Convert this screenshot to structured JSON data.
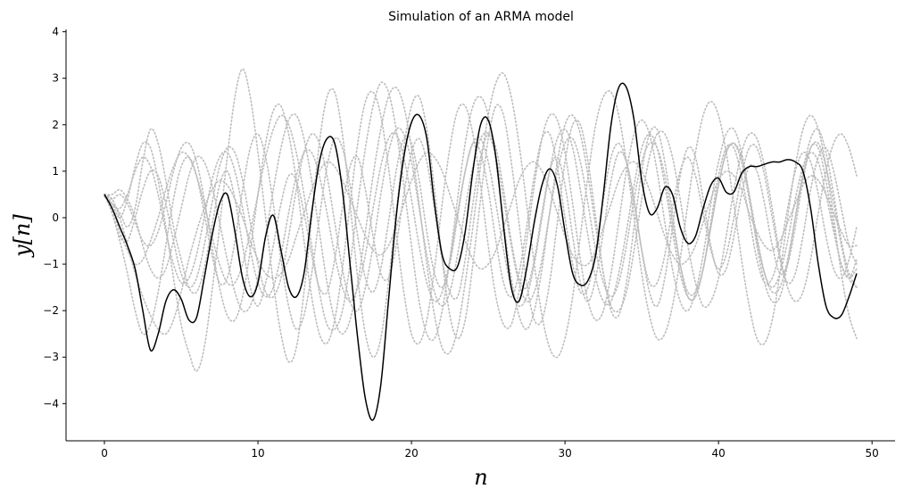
{
  "chart_data": {
    "type": "line",
    "title": "Simulation of an ARMA model",
    "xlabel": "n",
    "ylabel": "y[n]",
    "xlim": [
      -2.5,
      51.5
    ],
    "ylim": [
      -4.8,
      4.05
    ],
    "xticks": [
      0,
      10,
      20,
      30,
      40,
      50
    ],
    "yticks": [
      -4,
      -3,
      -2,
      -1,
      0,
      1,
      2,
      3,
      4
    ],
    "ytick_labels": [
      "−4",
      "−3",
      "−2",
      "−1",
      "0",
      "1",
      "2",
      "3",
      "4"
    ],
    "colors": {
      "main": "#000000",
      "background_series": "#bdbdbd"
    },
    "main_series": {
      "x": [
        0,
        0.5,
        1,
        1.5,
        2,
        2.5,
        3,
        3.5,
        4,
        4.5,
        5,
        5.5,
        6,
        6.5,
        7,
        7.5,
        8,
        8.5,
        9,
        9.5,
        10,
        10.5,
        11,
        11.5,
        12,
        12.5,
        13,
        13.5,
        14,
        14.5,
        15,
        15.5,
        16,
        16.5,
        17,
        17.5,
        18,
        18.5,
        19,
        19.5,
        20,
        20.5,
        21,
        21.5,
        22,
        22.5,
        23,
        23.5,
        24,
        24.5,
        25,
        25.5,
        26,
        26.5,
        27,
        27.5,
        28,
        28.5,
        29,
        29.5,
        30,
        30.5,
        31,
        31.5,
        32,
        32.5,
        33,
        33.5,
        34,
        34.5,
        35,
        35.5,
        36,
        36.5,
        37,
        37.5,
        38,
        38.5,
        39,
        39.5,
        40,
        40.5,
        41,
        41.5,
        42,
        42.5,
        43,
        43.5,
        44,
        44.5,
        45,
        45.5,
        46,
        46.5,
        47,
        47.5,
        48,
        48.5,
        49
      ],
      "y": [
        0.5,
        0.2,
        -0.2,
        -0.6,
        -1.1,
        -2.0,
        -2.85,
        -2.5,
        -1.8,
        -1.55,
        -1.75,
        -2.2,
        -2.15,
        -1.3,
        -0.4,
        0.3,
        0.5,
        -0.3,
        -1.3,
        -1.7,
        -1.4,
        -0.4,
        0.05,
        -0.7,
        -1.5,
        -1.7,
        -1.2,
        0.1,
        1.2,
        1.7,
        1.6,
        0.6,
        -1.0,
        -2.6,
        -3.9,
        -4.35,
        -3.6,
        -1.8,
        0.0,
        1.3,
        2.05,
        2.2,
        1.7,
        0.3,
        -0.8,
        -1.1,
        -1.05,
        -0.3,
        1.0,
        2.0,
        2.1,
        1.3,
        -0.2,
        -1.5,
        -1.8,
        -1.1,
        -0.1,
        0.7,
        1.05,
        0.7,
        -0.3,
        -1.2,
        -1.45,
        -1.35,
        -0.8,
        0.5,
        2.0,
        2.8,
        2.8,
        2.1,
        0.8,
        0.1,
        0.2,
        0.65,
        0.5,
        -0.2,
        -0.55,
        -0.4,
        0.2,
        0.7,
        0.85,
        0.55,
        0.55,
        0.95,
        1.1,
        1.1,
        1.15,
        1.2,
        1.2,
        1.25,
        1.2,
        1.0,
        0.2,
        -1.0,
        -1.9,
        -2.15,
        -2.1,
        -1.7,
        -1.2
      ]
    },
    "background_series": [
      {
        "values": [
          0.45,
          0.3,
          0.1,
          -0.2,
          0.2,
          1.2,
          1.9,
          1.6,
          0.8,
          -0.2,
          -0.9,
          -1.5,
          -1.6,
          -1.1,
          -0.2,
          0.7,
          1.0,
          0.4,
          -0.6,
          -1.5,
          -1.9,
          -1.4,
          -0.6,
          0.3,
          0.9,
          0.8,
          0.1,
          -0.8,
          -1.5,
          -1.6,
          -0.9,
          0.2,
          1.1,
          1.3,
          0.6,
          -0.4,
          -1.2,
          -1.3,
          -0.6,
          0.5,
          1.4,
          1.7,
          1.2,
          0.2,
          -0.9,
          -1.6,
          -1.7,
          -0.9,
          0.3,
          1.3,
          1.8,
          1.5,
          0.6,
          -0.5,
          -1.3,
          -1.5,
          -0.9,
          0.1,
          1.0,
          1.3,
          0.7,
          -0.4,
          -1.4,
          -1.8,
          -1.3,
          -0.3,
          0.8,
          1.4,
          1.2,
          0.4,
          -0.7,
          -1.6,
          -1.9,
          -1.3,
          -0.2,
          0.9,
          1.5,
          1.3,
          0.4,
          -0.6,
          -1.2,
          -1.1,
          -0.4,
          0.5,
          1.1,
          1.0,
          0.3,
          -0.6,
          -1.2,
          -1.0,
          -0.2,
          0.8,
          1.5,
          1.5,
          0.8,
          -0.2,
          -1.0,
          -1.3,
          -0.9
        ]
      },
      {
        "values": [
          0.5,
          0.1,
          -0.5,
          -1.2,
          -2.0,
          -2.5,
          -2.3,
          -1.6,
          -0.6,
          0.4,
          1.1,
          1.3,
          0.9,
          0.1,
          -0.8,
          -1.4,
          -1.3,
          -0.5,
          0.6,
          1.5,
          1.8,
          1.3,
          0.3,
          -0.9,
          -1.9,
          -2.4,
          -2.1,
          -1.2,
          0.0,
          1.1,
          1.7,
          1.5,
          0.7,
          -0.4,
          -1.3,
          -1.6,
          -1.1,
          -0.1,
          1.0,
          1.7,
          1.6,
          0.8,
          -0.3,
          -1.2,
          -1.5,
          -1.0,
          0.0,
          1.0,
          1.6,
          1.4,
          0.6,
          -0.5,
          -1.4,
          -1.7,
          -1.2,
          -0.2,
          0.9,
          1.7,
          1.8,
          1.1,
          0.0,
          -1.0,
          -1.6,
          -1.5,
          -0.7,
          0.4,
          1.3,
          1.6,
          1.2,
          0.3,
          -0.7,
          -1.4,
          -1.4,
          -0.8,
          0.2,
          1.0,
          1.3,
          0.9,
          0.1,
          -0.7,
          -1.1,
          -0.8,
          0.0,
          0.9,
          1.5,
          1.5,
          0.9,
          0.0,
          -0.9,
          -1.4,
          -1.2,
          -0.4,
          0.6,
          1.3,
          1.5,
          1.0,
          0.2,
          -0.6,
          -1.0
        ]
      },
      {
        "values": [
          0.5,
          0.3,
          0.0,
          0.4,
          1.1,
          1.6,
          1.5,
          0.8,
          -0.2,
          -1.3,
          -2.3,
          -2.9,
          -3.3,
          -2.8,
          -1.6,
          -0.2,
          1.3,
          2.6,
          3.2,
          2.6,
          1.4,
          0.0,
          -1.4,
          -2.5,
          -3.1,
          -2.8,
          -1.6,
          0.0,
          1.6,
          2.6,
          2.7,
          1.8,
          0.3,
          -1.3,
          -2.5,
          -3.0,
          -2.6,
          -1.4,
          0.1,
          1.5,
          2.4,
          2.6,
          1.9,
          0.6,
          -0.9,
          -2.1,
          -2.6,
          -2.2,
          -1.0,
          0.4,
          1.7,
          2.4,
          2.2,
          1.2,
          -0.1,
          -1.4,
          -2.2,
          -2.2,
          -1.4,
          -0.1,
          1.2,
          2.0,
          2.0,
          1.2,
          0.0,
          -1.2,
          -2.0,
          -2.1,
          -1.4,
          -0.2,
          1.0,
          1.8,
          1.9,
          1.2,
          0.1,
          -1.0,
          -1.7,
          -1.7,
          -1.1,
          -0.1,
          0.9,
          1.5,
          1.5,
          0.9,
          0.0,
          -0.9,
          -1.4,
          -1.3,
          -0.7,
          0.2,
          1.0,
          1.4,
          1.2,
          0.5,
          -0.4,
          -1.1,
          -1.3,
          -0.9,
          -0.2
        ]
      },
      {
        "values": [
          0.5,
          0.4,
          0.0,
          -0.6,
          -1.2,
          -1.7,
          -2.1,
          -2.4,
          -2.5,
          -2.2,
          -1.6,
          -0.9,
          -0.3,
          0.2,
          0.6,
          0.8,
          0.7,
          0.4,
          0.0,
          -0.5,
          -0.9,
          -1.2,
          -1.3,
          -1.2,
          -0.9,
          -0.4,
          0.1,
          0.6,
          1.0,
          1.2,
          1.1,
          0.8,
          0.4,
          0.0,
          -0.4,
          -0.7,
          -0.8,
          -0.6,
          -0.2,
          0.3,
          0.8,
          1.2,
          1.4,
          1.3,
          1.0,
          0.5,
          0.0,
          -0.5,
          -0.9,
          -1.1,
          -1.0,
          -0.7,
          -0.2,
          0.3,
          0.8,
          1.1,
          1.2,
          1.0,
          0.6,
          0.1,
          -0.4,
          -0.8,
          -1.0,
          -1.0,
          -0.7,
          -0.2,
          0.3,
          0.8,
          1.1,
          1.2,
          1.0,
          0.6,
          0.1,
          -0.4,
          -0.8,
          -1.0,
          -0.9,
          -0.6,
          -0.1,
          0.4,
          0.8,
          1.0,
          0.9,
          0.6,
          0.1,
          -0.3,
          -0.6,
          -0.7,
          -0.5,
          -0.1,
          0.3,
          0.7,
          0.9,
          0.8,
          0.5,
          0.1,
          -0.3,
          -0.6,
          -0.6
        ]
      },
      {
        "values": [
          0.5,
          0.2,
          -0.3,
          -0.7,
          -1.0,
          -0.9,
          -0.5,
          0.0,
          0.6,
          1.1,
          1.4,
          1.3,
          0.9,
          0.3,
          -0.4,
          -1.0,
          -1.4,
          -1.4,
          -1.0,
          -0.3,
          0.5,
          1.3,
          1.9,
          2.2,
          2.0,
          1.4,
          0.5,
          -0.6,
          -1.6,
          -2.3,
          -2.4,
          -2.0,
          -1.0,
          0.3,
          1.5,
          2.4,
          2.9,
          2.7,
          1.9,
          0.7,
          -0.6,
          -1.8,
          -2.5,
          -2.6,
          -2.0,
          -0.9,
          0.4,
          1.6,
          2.4,
          2.6,
          2.2,
          1.2,
          -0.1,
          -1.3,
          -2.1,
          -2.4,
          -2.0,
          -1.1,
          0.1,
          1.2,
          2.0,
          2.2,
          1.8,
          0.9,
          -0.2,
          -1.2,
          -1.9,
          -2.0,
          -1.6,
          -0.7,
          0.4,
          1.3,
          1.8,
          1.8,
          1.3,
          0.4,
          -0.6,
          -1.4,
          -1.9,
          -1.8,
          -1.3,
          -0.4,
          0.6,
          1.4,
          1.8,
          1.7,
          1.1,
          0.2,
          -0.8,
          -1.5,
          -1.8,
          -1.6,
          -0.9,
          0.1,
          1.0,
          1.6,
          1.8,
          1.5,
          0.9
        ]
      },
      {
        "values": [
          0.5,
          0.5,
          0.6,
          0.4,
          0.0,
          -0.6,
          -1.1,
          -1.3,
          -1.1,
          -0.5,
          0.2,
          0.9,
          1.3,
          1.2,
          0.7,
          -0.1,
          -0.9,
          -1.6,
          -2.0,
          -1.9,
          -1.3,
          -0.4,
          0.6,
          1.5,
          2.1,
          2.2,
          1.7,
          0.8,
          -0.3,
          -1.4,
          -2.2,
          -2.5,
          -2.2,
          -1.4,
          -0.3,
          0.9,
          1.9,
          2.6,
          2.8,
          2.4,
          1.5,
          0.3,
          -1.0,
          -2.1,
          -2.8,
          -2.9,
          -2.4,
          -1.4,
          -0.2,
          1.1,
          2.2,
          2.9,
          3.1,
          2.6,
          1.6,
          0.3,
          -1.0,
          -2.1,
          -2.8,
          -3.0,
          -2.6,
          -1.7,
          -0.4,
          0.9,
          2.0,
          2.6,
          2.7,
          2.2,
          1.2,
          0.0,
          -1.2,
          -2.1,
          -2.6,
          -2.5,
          -1.9,
          -0.9,
          0.3,
          1.4,
          2.2,
          2.5,
          2.2,
          1.4,
          0.3,
          -0.9,
          -1.9,
          -2.6,
          -2.7,
          -2.2,
          -1.2,
          0.0,
          1.1,
          1.9,
          2.2,
          1.9,
          1.1,
          0.0,
          -1.2,
          -2.1,
          -2.6
        ]
      },
      {
        "values": [
          0.5,
          0.3,
          0.2,
          0.5,
          1.0,
          1.3,
          1.1,
          0.5,
          -0.3,
          -1.0,
          -1.4,
          -1.3,
          -0.8,
          0.0,
          0.8,
          1.3,
          1.4,
          1.0,
          0.2,
          -0.7,
          -1.4,
          -1.7,
          -1.5,
          -0.8,
          0.1,
          0.9,
          1.4,
          1.4,
          0.9,
          0.1,
          -0.8,
          -1.5,
          -1.8,
          -1.5,
          -0.8,
          0.2,
          1.1,
          1.7,
          1.8,
          1.3,
          0.4,
          -0.6,
          -1.4,
          -1.8,
          -1.6,
          -0.9,
          0.1,
          1.0,
          1.6,
          1.7,
          1.2,
          0.3,
          -0.7,
          -1.5,
          -1.9,
          -1.7,
          -1.0,
          0.0,
          1.0,
          1.7,
          1.9,
          1.5,
          0.6,
          -0.4,
          -1.3,
          -1.8,
          -1.8,
          -1.2,
          -0.3,
          0.7,
          1.5,
          1.8,
          1.5,
          0.7,
          -0.3,
          -1.2,
          -1.7,
          -1.7,
          -1.1,
          -0.2,
          0.7,
          1.4,
          1.6,
          1.3,
          0.5,
          -0.4,
          -1.2,
          -1.6,
          -1.5,
          -0.9,
          0.0,
          0.9,
          1.5,
          1.6,
          1.1,
          0.3,
          -0.6,
          -1.3,
          -1.5
        ]
      },
      {
        "values": [
          0.5,
          0.1,
          -0.4,
          -0.5,
          0.0,
          0.6,
          1.0,
          0.9,
          0.3,
          -0.5,
          -1.2,
          -1.5,
          -1.3,
          -0.6,
          0.3,
          1.1,
          1.5,
          1.4,
          0.8,
          -0.1,
          -1.0,
          -1.6,
          -1.7,
          -1.3,
          -0.4,
          0.6,
          1.4,
          1.8,
          1.6,
          0.9,
          -0.1,
          -1.1,
          -1.8,
          -2.0,
          -1.5,
          -0.6,
          0.5,
          1.4,
          1.9,
          1.8,
          1.2,
          0.2,
          -0.8,
          -1.6,
          -1.9,
          -1.6,
          -0.8,
          0.2,
          1.1,
          1.7,
          1.8,
          1.3,
          0.4,
          -0.6,
          -1.4,
          -1.8,
          -1.6,
          -0.9,
          0.1,
          1.0,
          1.6,
          1.7,
          1.2,
          0.3,
          -0.7,
          -1.4,
          -1.7,
          -1.4,
          -0.6,
          0.4,
          1.2,
          1.6,
          1.5,
          0.9,
          -0.1,
          -1.0,
          -1.6,
          -1.6,
          -1.1,
          -0.2,
          0.7,
          1.4,
          1.6,
          1.2,
          0.4,
          -0.5,
          -1.2,
          -1.5,
          -1.2,
          -0.5,
          0.4,
          1.1,
          1.4,
          1.2,
          0.5,
          -0.3,
          -1.0,
          -1.3,
          -1.1
        ]
      },
      {
        "values": [
          0.5,
          0.4,
          0.5,
          0.3,
          -0.1,
          -0.5,
          -0.6,
          -0.3,
          0.3,
          1.0,
          1.5,
          1.6,
          1.2,
          0.4,
          -0.6,
          -1.5,
          -2.1,
          -2.2,
          -1.7,
          -0.7,
          0.5,
          1.6,
          2.3,
          2.4,
          1.8,
          0.8,
          -0.5,
          -1.7,
          -2.5,
          -2.7,
          -2.2,
          -1.1,
          0.3,
          1.6,
          2.5,
          2.7,
          2.2,
          1.1,
          -0.3,
          -1.6,
          -2.5,
          -2.7,
          -2.2,
          -1.1,
          0.3,
          1.5,
          2.3,
          2.4,
          1.8,
          0.7,
          -0.6,
          -1.7,
          -2.3,
          -2.3,
          -1.6,
          -0.5,
          0.7,
          1.7,
          2.2,
          2.1,
          1.4,
          0.3,
          -0.9,
          -1.8,
          -2.2,
          -2.0,
          -1.2,
          -0.1,
          1.0,
          1.8,
          2.1,
          1.8,
          1.0,
          -0.1,
          -1.1,
          -1.8,
          -2.0,
          -1.6,
          -0.8,
          0.3,
          1.2,
          1.8,
          1.9,
          1.4,
          0.5,
          -0.6,
          -1.4,
          -1.8,
          -1.7,
          -1.0,
          0.0,
          1.0,
          1.7,
          1.9,
          1.4,
          0.5,
          -0.5,
          -1.2,
          -1.5
        ]
      }
    ]
  }
}
